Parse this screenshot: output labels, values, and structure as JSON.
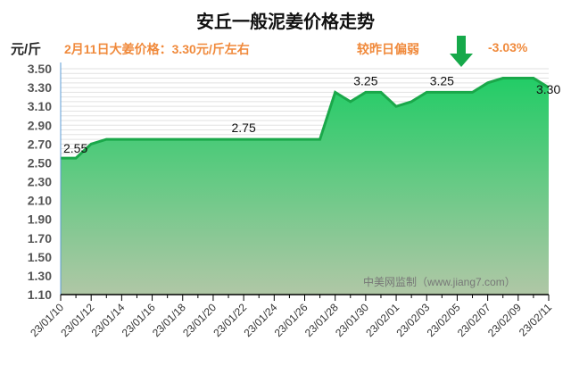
{
  "header": {
    "title": "安丘一般泥姜价格走势",
    "unit": "元/斤",
    "note": "2月11日大姜价格：3.30元/斤左右",
    "compare_text": "较昨日偏弱",
    "change": "-3.03%",
    "trend_icon": "down-arrow-icon"
  },
  "watermark": "中美网监制（www.jiang7.com）",
  "colors": {
    "line": "#1aa84a",
    "fill_top": "#2ecc71",
    "fill_bottom": "#a9c4a0",
    "accent": "#f08a3c",
    "arrow": "#16a94a"
  },
  "chart_data": {
    "type": "area",
    "title": "安丘一般泥姜价格走势",
    "ylabel": "元/斤",
    "xlabel": "",
    "ylim": [
      1.1,
      3.5
    ],
    "yticks": [
      "3.50",
      "3.30",
      "3.10",
      "2.90",
      "2.70",
      "2.50",
      "2.30",
      "2.10",
      "1.90",
      "1.70",
      "1.50",
      "1.30",
      "1.10"
    ],
    "xtick_labels": [
      "23/01/10",
      "23/01/12",
      "23/01/14",
      "23/01/16",
      "23/01/18",
      "23/01/20",
      "23/01/22",
      "23/01/24",
      "23/01/26",
      "23/01/28",
      "23/01/30",
      "23/02/01",
      "23/02/03",
      "23/02/05",
      "23/02/07",
      "23/02/09",
      "23/02/11"
    ],
    "x": [
      "23/01/10",
      "23/01/11",
      "23/01/12",
      "23/01/13",
      "23/01/14",
      "23/01/15",
      "23/01/16",
      "23/01/17",
      "23/01/18",
      "23/01/19",
      "23/01/20",
      "23/01/21",
      "23/01/22",
      "23/01/23",
      "23/01/24",
      "23/01/25",
      "23/01/26",
      "23/01/27",
      "23/01/28",
      "23/01/29",
      "23/01/30",
      "23/01/31",
      "23/02/01",
      "23/02/02",
      "23/02/03",
      "23/02/04",
      "23/02/05",
      "23/02/06",
      "23/02/07",
      "23/02/08",
      "23/02/09",
      "23/02/10",
      "23/02/11"
    ],
    "values": [
      2.55,
      2.55,
      2.7,
      2.75,
      2.75,
      2.75,
      2.75,
      2.75,
      2.75,
      2.75,
      2.75,
      2.75,
      2.75,
      2.75,
      2.75,
      2.75,
      2.75,
      2.75,
      3.25,
      3.15,
      3.25,
      3.25,
      3.1,
      3.15,
      3.25,
      3.25,
      3.25,
      3.25,
      3.35,
      3.4,
      3.4,
      3.4,
      3.3
    ],
    "annotations": [
      {
        "x": "23/01/10",
        "label": "2.55"
      },
      {
        "x": "23/01/22",
        "label": "2.75"
      },
      {
        "x": "23/01/30",
        "label": "3.25"
      },
      {
        "x": "23/02/04",
        "label": "3.25"
      },
      {
        "x": "23/02/11",
        "label": "3.30"
      }
    ],
    "grid": true,
    "legend": "none"
  }
}
